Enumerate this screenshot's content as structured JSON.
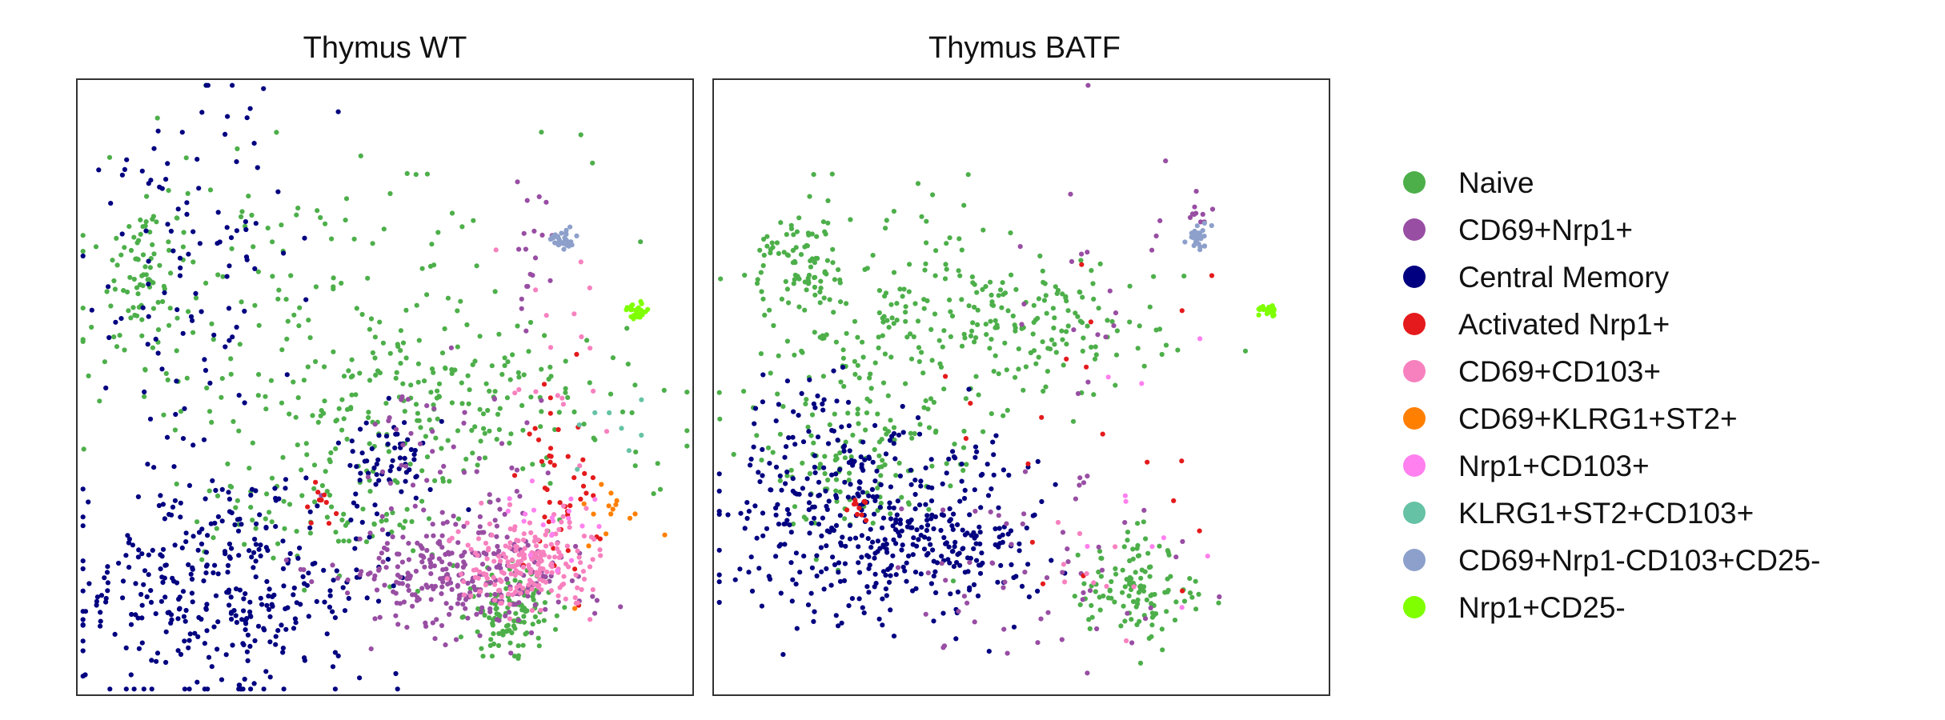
{
  "chart_data": {
    "type": "scatter",
    "panels": [
      {
        "title": "Thymus WT",
        "xlim": [
          0,
          100
        ],
        "ylim": [
          0,
          100
        ],
        "grid": false,
        "axis_ticks": false,
        "clusters": [
          {
            "category": "Naive",
            "shape": "blob",
            "n": 70,
            "cx": 11.1,
            "cy": 31.8,
            "sx": 2.8,
            "sy": 5.7
          },
          {
            "category": "Naive",
            "shape": "blob",
            "n": 140,
            "cx": 34.5,
            "cy": 34.2,
            "sx": 20.0,
            "sy": 13.2
          },
          {
            "category": "Naive",
            "shape": "blob",
            "n": 220,
            "cx": 60.0,
            "cy": 52.6,
            "sx": 16.0,
            "sy": 7.1
          },
          {
            "category": "Naive",
            "shape": "blob",
            "n": 120,
            "cx": 69.7,
            "cy": 86.7,
            "sx": 3.6,
            "sy": 3.7
          },
          {
            "category": "Naive",
            "shape": "blob",
            "n": 90,
            "cx": 38.2,
            "cy": 70.0,
            "sx": 11.2,
            "sy": 5.1
          },
          {
            "category": "Central Memory",
            "shape": "blob",
            "n": 360,
            "cx": 24.3,
            "cy": 83.0,
            "sx": 12.5,
            "sy": 8.8
          },
          {
            "category": "Central Memory",
            "shape": "blob",
            "n": 110,
            "cx": 19.2,
            "cy": 32.0,
            "sx": 8.0,
            "sy": 18.0
          },
          {
            "category": "Central Memory",
            "shape": "blob",
            "n": 60,
            "cx": 51.7,
            "cy": 61.7,
            "sx": 4.0,
            "sy": 3.6
          },
          {
            "category": "CD69+Nrp1+",
            "shape": "blob",
            "n": 260,
            "cx": 62.1,
            "cy": 80.8,
            "sx": 8.6,
            "sy": 4.5
          },
          {
            "category": "CD69+Nrp1+",
            "shape": "blob",
            "n": 70,
            "cx": 61.3,
            "cy": 66.5,
            "sx": 7.4,
            "sy": 9.9
          },
          {
            "category": "CD69+Nrp1+",
            "shape": "blob",
            "n": 20,
            "cx": 74.0,
            "cy": 26.7,
            "sx": 1.6,
            "sy": 5.5
          },
          {
            "category": "Activated Nrp1+",
            "shape": "blob",
            "n": 45,
            "cx": 79.0,
            "cy": 64.2,
            "sx": 3.4,
            "sy": 7.7
          },
          {
            "category": "Activated Nrp1+",
            "shape": "blob",
            "n": 10,
            "cx": 39.6,
            "cy": 69.2,
            "sx": 1.6,
            "sy": 1.7
          },
          {
            "category": "CD69+CD103+",
            "shape": "blob",
            "n": 200,
            "cx": 72.9,
            "cy": 79.1,
            "sx": 5.6,
            "sy": 3.9
          },
          {
            "category": "CD69+CD103+",
            "shape": "blob",
            "n": 20,
            "cx": 77.9,
            "cy": 46.3,
            "sx": 3.8,
            "sy": 10.5
          },
          {
            "category": "Nrp1+CD103+",
            "shape": "blob",
            "n": 20,
            "cx": 76.7,
            "cy": 71.8,
            "sx": 4.6,
            "sy": 3.0
          },
          {
            "category": "CD69+KLRG1+ST2+",
            "shape": "blob",
            "n": 15,
            "cx": 88.1,
            "cy": 73.0,
            "sx": 4.5,
            "sy": 7.1
          },
          {
            "category": "KLRG1+ST2+CD103+",
            "shape": "blob",
            "n": 8,
            "cx": 86.9,
            "cy": 55.0,
            "sx": 3.2,
            "sy": 3.7
          },
          {
            "category": "CD69+Nrp1-CD103+CD25-",
            "shape": "blob",
            "n": 35,
            "cx": 78.8,
            "cy": 26.0,
            "sx": 1.0,
            "sy": 0.9
          },
          {
            "category": "Nrp1+CD25-",
            "shape": "blob",
            "n": 25,
            "cx": 90.9,
            "cy": 37.8,
            "sx": 0.9,
            "sy": 0.7
          }
        ]
      },
      {
        "title": "Thymus BATF",
        "xlim": [
          0,
          100
        ],
        "ylim": [
          0,
          100
        ],
        "grid": false,
        "axis_ticks": false,
        "clusters": [
          {
            "category": "Naive",
            "shape": "blob",
            "n": 90,
            "cx": 14.8,
            "cy": 31.2,
            "sx": 3.4,
            "sy": 5.1
          },
          {
            "category": "Naive",
            "shape": "blob",
            "n": 120,
            "cx": 68.8,
            "cy": 82.9,
            "sx": 4.4,
            "sy": 4.0
          },
          {
            "category": "Naive",
            "shape": "blob",
            "n": 200,
            "cx": 35.6,
            "cy": 40.0,
            "sx": 14.8,
            "sy": 10.0
          },
          {
            "category": "Naive",
            "shape": "blob",
            "n": 100,
            "cx": 52.8,
            "cy": 40.0,
            "sx": 10.8,
            "sy": 4.6
          },
          {
            "category": "Naive",
            "shape": "blob",
            "n": 120,
            "cx": 24.0,
            "cy": 62.0,
            "sx": 8.8,
            "sy": 7.6
          },
          {
            "category": "Central Memory",
            "shape": "blob",
            "n": 380,
            "cx": 25.0,
            "cy": 71.5,
            "sx": 11.6,
            "sy": 8.8
          },
          {
            "category": "Central Memory",
            "shape": "blob",
            "n": 70,
            "cx": 41.8,
            "cy": 75.0,
            "sx": 6.4,
            "sy": 4.4
          },
          {
            "category": "Central Memory",
            "shape": "blob",
            "n": 40,
            "cx": 14.8,
            "cy": 60.2,
            "sx": 4.6,
            "sy": 6.6
          },
          {
            "category": "CD69+Nrp1+",
            "shape": "blob",
            "n": 60,
            "cx": 54.5,
            "cy": 80.2,
            "sx": 10.2,
            "sy": 7.5
          },
          {
            "category": "CD69+Nrp1+",
            "shape": "blob",
            "n": 20,
            "cx": 62.2,
            "cy": 33.5,
            "sx": 7.2,
            "sy": 11.1
          },
          {
            "category": "CD69+Nrp1+",
            "shape": "blob",
            "n": 10,
            "cx": 78.7,
            "cy": 22.9,
            "sx": 1.0,
            "sy": 1.6
          },
          {
            "category": "Activated Nrp1+",
            "shape": "blob",
            "n": 20,
            "cx": 60.8,
            "cy": 51.4,
            "sx": 13.4,
            "sy": 15.2
          },
          {
            "category": "Activated Nrp1+",
            "shape": "blob",
            "n": 10,
            "cx": 24.0,
            "cy": 68.8,
            "sx": 1.4,
            "sy": 1.8
          },
          {
            "category": "CD69+CD103+",
            "shape": "blob",
            "n": 10,
            "cx": 60.6,
            "cy": 80.4,
            "sx": 5.2,
            "sy": 4.5
          },
          {
            "category": "Nrp1+CD103+",
            "shape": "blob",
            "n": 10,
            "cx": 71.0,
            "cy": 64.3,
            "sx": 6.6,
            "sy": 11.6
          },
          {
            "category": "CD69+Nrp1-CD103+CD25-",
            "shape": "blob",
            "n": 35,
            "cx": 78.6,
            "cy": 25.6,
            "sx": 1.0,
            "sy": 0.9
          },
          {
            "category": "Nrp1+CD25-",
            "shape": "blob",
            "n": 25,
            "cx": 90.1,
            "cy": 37.5,
            "sx": 0.9,
            "sy": 0.6
          }
        ]
      }
    ],
    "legend": {
      "placement": "right",
      "items": [
        {
          "label": "Naive",
          "color": "#4daf4a"
        },
        {
          "label": "CD69+Nrp1+",
          "color": "#984ea3"
        },
        {
          "label": "Central Memory",
          "color": "#000080"
        },
        {
          "label": "Activated Nrp1+",
          "color": "#e41a1c"
        },
        {
          "label": "CD69+CD103+",
          "color": "#f781bf"
        },
        {
          "label": "CD69+KLRG1+ST2+",
          "color": "#ff7f00"
        },
        {
          "label": "Nrp1+CD103+",
          "color": "#ff80ee"
        },
        {
          "label": "KLRG1+ST2+CD103+",
          "color": "#66c2a5"
        },
        {
          "label": "CD69+Nrp1-CD103+CD25-",
          "color": "#8da0cb"
        },
        {
          "label": "Nrp1+CD25-",
          "color": "#7fff00"
        }
      ]
    }
  }
}
